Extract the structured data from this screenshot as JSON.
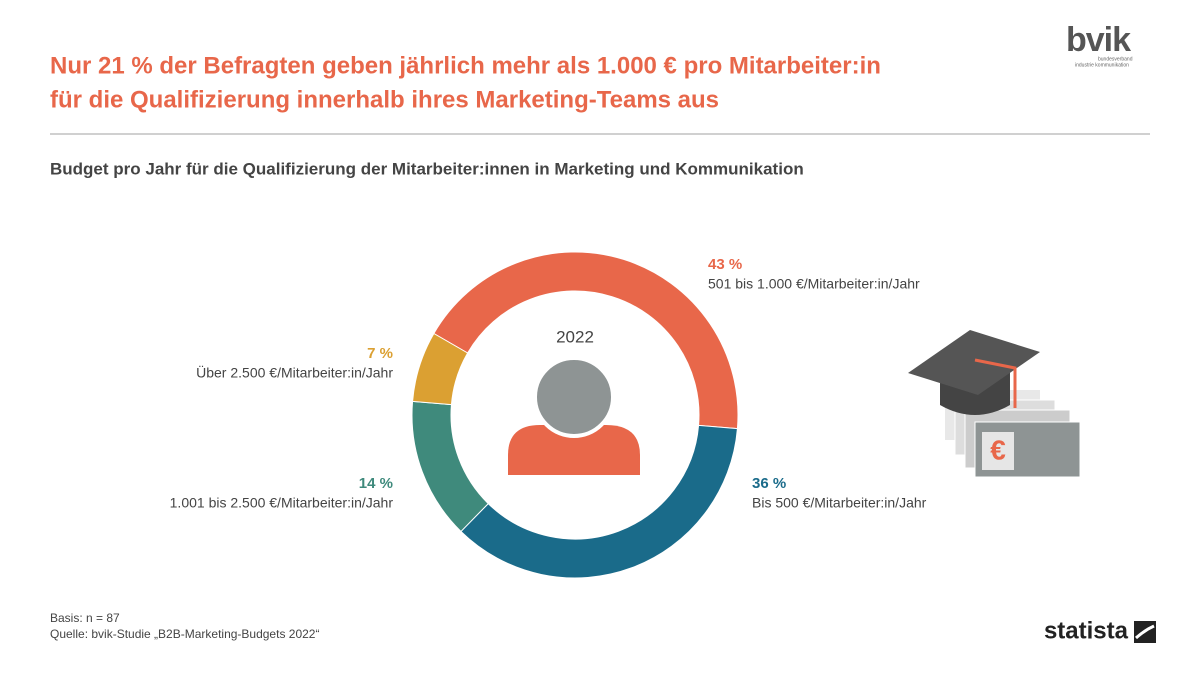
{
  "chart_data": {
    "type": "pie",
    "title": [
      "Nur 21 % der Befragten geben jährlich mehr als 1.000 € pro Mitarbeiter:in",
      "für die Qualifizierung innerhalb ihres Marketing-Teams aus"
    ],
    "subtitle": "Budget pro Jahr für die Qualifizierung der Mitarbeiter:innen in Marketing und Kommunikation",
    "center_label": "2022",
    "categories": [
      "501 bis 1.000 €/Mitarbeiter:in/Jahr",
      "Bis 500 €/Mitarbeiter:in/Jahr",
      "1.001 bis 2.500 €/Mitarbeiter:in/Jahr",
      "Über 2.500 €/Mitarbeiter:in/Jahr"
    ],
    "values": [
      43,
      36,
      14,
      7
    ],
    "value_labels": [
      "43 %",
      "36 %",
      "14 %",
      "7 %"
    ],
    "colors": [
      "#e8674a",
      "#1a6b8a",
      "#3f8a7c",
      "#dba032"
    ],
    "notes": [
      "Basis: n = 87",
      "Quelle: bvik-Studie „B2B-Marketing-Budgets 2022“"
    ]
  },
  "logos": {
    "bvik": "bvik",
    "bvik_tagline": [
      "bundesverband",
      "industrie kommunikation"
    ],
    "statista": "statista"
  },
  "illustration_symbol": "€"
}
